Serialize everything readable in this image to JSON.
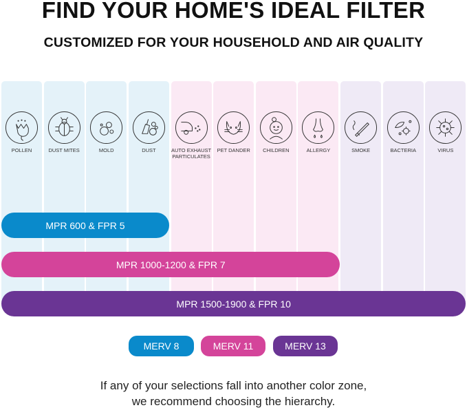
{
  "title": "FIND YOUR HOME'S IDEAL FILTER",
  "subtitle": "CUSTOMIZED FOR YOUR HOUSEHOLD AND AIR QUALITY",
  "colors": {
    "blue": "#0a8acb",
    "pink": "#d4449a",
    "purple": "#6a3594",
    "blue_zone": "#e4f2f9",
    "pink_zone": "#fbe9f4",
    "purple_zone": "#efeaf6"
  },
  "categories": [
    {
      "label": "POLLEN",
      "icon": "flower-icon",
      "zone": "blue"
    },
    {
      "label": "DUST MITES",
      "icon": "bug-icon",
      "zone": "blue"
    },
    {
      "label": "MOLD",
      "icon": "mold-spores-icon",
      "zone": "blue"
    },
    {
      "label": "DUST",
      "icon": "broom-dust-icon",
      "zone": "blue"
    },
    {
      "label": "AUTO EXHAUST PARTICULATES",
      "icon": "car-exhaust-icon",
      "zone": "pink"
    },
    {
      "label": "PET DANDER",
      "icon": "cat-icon",
      "zone": "pink"
    },
    {
      "label": "CHILDREN",
      "icon": "child-face-icon",
      "zone": "pink"
    },
    {
      "label": "ALLERGY",
      "icon": "nose-icon",
      "zone": "pink"
    },
    {
      "label": "SMOKE",
      "icon": "cigarette-icon",
      "zone": "purple"
    },
    {
      "label": "BACTERIA",
      "icon": "bacteria-icon",
      "zone": "purple"
    },
    {
      "label": "VIRUS",
      "icon": "virus-icon",
      "zone": "purple"
    }
  ],
  "bars": [
    {
      "label": "MPR 600 & FPR 5",
      "covers": 4,
      "zone": "blue"
    },
    {
      "label": "MPR 1000-1200 & FPR 7",
      "covers": 8,
      "zone": "pink"
    },
    {
      "label": "MPR 1500-1900 & FPR 10",
      "covers": 11,
      "zone": "purple"
    }
  ],
  "merv": [
    {
      "label": "MERV 8",
      "zone": "blue"
    },
    {
      "label": "MERV 11",
      "zone": "pink"
    },
    {
      "label": "MERV 13",
      "zone": "purple"
    }
  ],
  "footer": {
    "line1": "If any of your selections fall into another color zone,",
    "line2": "we recommend choosing the hierarchy."
  }
}
